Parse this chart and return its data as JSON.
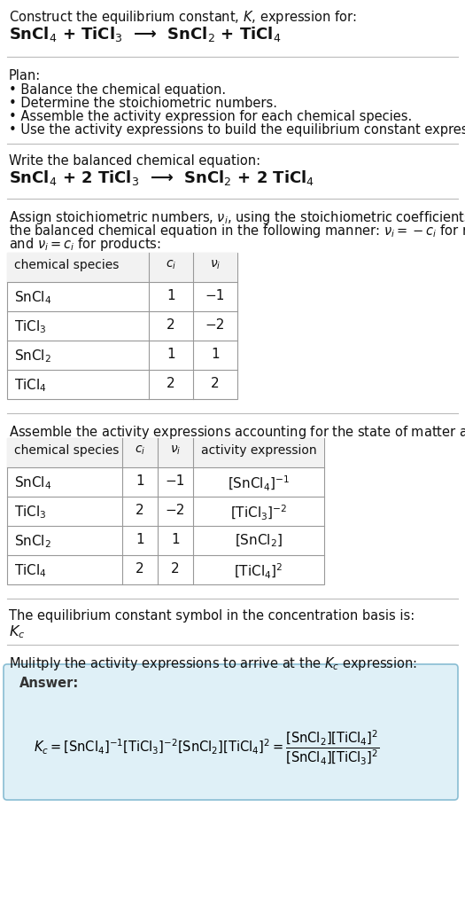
{
  "bg_color": "#ffffff",
  "title_line1": "Construct the equilibrium constant, K, expression for:",
  "rxn_unbalanced": "SnCl$_4$ + TiCl$_3$  ⟶  SnCl$_2$ + TiCl$_4$",
  "plan_header": "Plan:",
  "plan_bullets": [
    "• Balance the chemical equation.",
    "• Determine the stoichiometric numbers.",
    "• Assemble the activity expression for each chemical species.",
    "• Use the activity expressions to build the equilibrium constant expression."
  ],
  "balanced_header": "Write the balanced chemical equation:",
  "rxn_balanced": "SnCl$_4$ + 2 TiCl$_3$  ⟶  SnCl$_2$ + 2 TiCl$_4$",
  "stoich_intro_lines": [
    "Assign stoichiometric numbers, $\\nu_i$, using the stoichiometric coefficients, $c_i$, from",
    "the balanced chemical equation in the following manner: $\\nu_i = -c_i$ for reactants",
    "and $\\nu_i = c_i$ for products:"
  ],
  "table1_headers": [
    "chemical species",
    "$c_i$",
    "$\\nu_i$"
  ],
  "table1_rows": [
    [
      "SnCl$_4$",
      "1",
      "−1"
    ],
    [
      "TiCl$_3$",
      "2",
      "−2"
    ],
    [
      "SnCl$_2$",
      "1",
      "1"
    ],
    [
      "TiCl$_4$",
      "2",
      "2"
    ]
  ],
  "activity_intro": "Assemble the activity expressions accounting for the state of matter and $\\nu_i$:",
  "table2_headers": [
    "chemical species",
    "$c_i$",
    "$\\nu_i$",
    "activity expression"
  ],
  "table2_rows": [
    [
      "SnCl$_4$",
      "1",
      "−1",
      "[SnCl$_4$]$^{-1}$"
    ],
    [
      "TiCl$_3$",
      "2",
      "−2",
      "[TiCl$_3$]$^{-2}$"
    ],
    [
      "SnCl$_2$",
      "1",
      "1",
      "[SnCl$_2$]"
    ],
    [
      "TiCl$_4$",
      "2",
      "2",
      "[TiCl$_4$]$^2$"
    ]
  ],
  "kc_intro": "The equilibrium constant symbol in the concentration basis is:",
  "kc_symbol": "$K_c$",
  "multiply_intro": "Mulitply the activity expressions to arrive at the $K_c$ expression:",
  "answer_label": "Answer:",
  "answer_box_color": "#dff0f7",
  "answer_box_border": "#89bdd3",
  "fig_width": 5.25,
  "fig_height": 10.16,
  "dpi": 100
}
